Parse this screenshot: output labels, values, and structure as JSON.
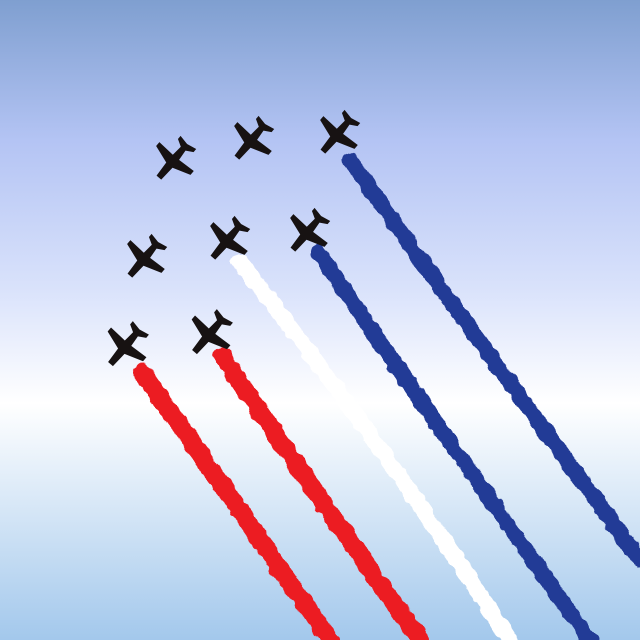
{
  "scene": {
    "sky_colors": {
      "top": "#7f9fd0",
      "upper": "#b4c4f4",
      "middle": "#d9e2fb",
      "horizon": "#ffffff",
      "bottom": "#a3c8ec"
    },
    "plane_color": "#171212",
    "trail_colors": {
      "red": "#ec1c24",
      "white": "#ffffff",
      "blue": "#233a96"
    }
  }
}
